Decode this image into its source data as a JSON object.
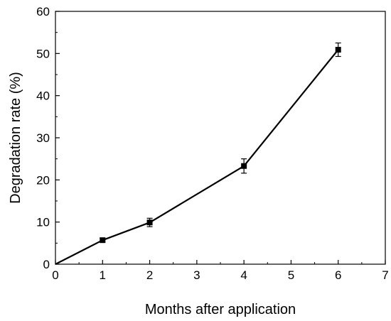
{
  "chart_data": {
    "type": "line",
    "title": "",
    "xlabel": "Months after application",
    "ylabel": "Degradation rate (%)",
    "xlim": [
      0,
      7
    ],
    "ylim": [
      0,
      60
    ],
    "x_ticks": [
      "0",
      "1",
      "2",
      "3",
      "4",
      "5",
      "6",
      "7"
    ],
    "y_ticks": [
      "0",
      "10",
      "20",
      "30",
      "40",
      "50",
      "60"
    ],
    "grid": false,
    "legend": "none",
    "series": [
      {
        "color": "#000000",
        "marker": "square",
        "points": [
          {
            "x": 0,
            "y": 0,
            "err": 0
          },
          {
            "x": 1,
            "y": 5.7,
            "err": 0.4
          },
          {
            "x": 2,
            "y": 9.9,
            "err": 1.0
          },
          {
            "x": 4,
            "y": 23.3,
            "err": 1.7
          },
          {
            "x": 6,
            "y": 50.9,
            "err": 1.6
          }
        ]
      }
    ]
  }
}
